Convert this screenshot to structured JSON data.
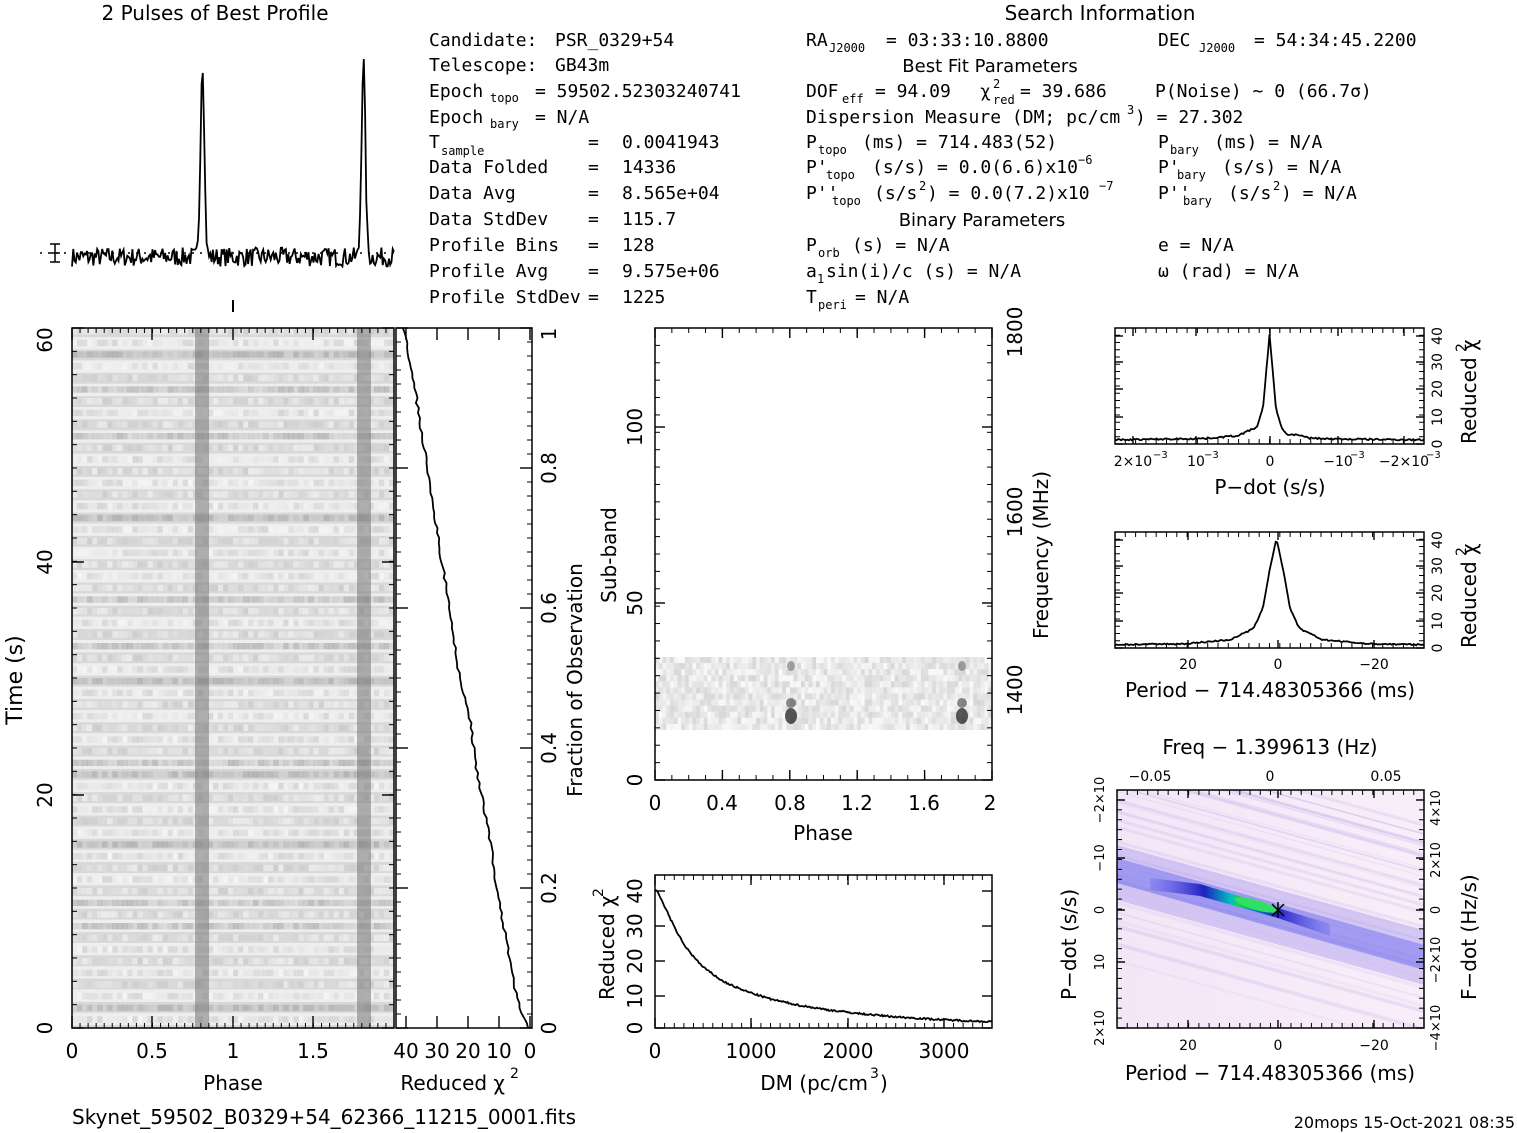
{
  "header": {
    "profile_title": "2 Pulses of Best Profile",
    "search_title": "Search Information",
    "best_fit_title": "Best Fit Parameters",
    "binary_title": "Binary Parameters",
    "footer_file": "Skynet_59502_B0329+54_62366_11215_0001.fits",
    "footer_stamp": "20mops  15-Oct-2021 08:35"
  },
  "info_left": {
    "candidate_label": "Candidate:",
    "candidate": "PSR_0329+54",
    "telescope_label": "Telescope:",
    "telescope": "GB43m",
    "epoch_topo_label": "Epoch",
    "epoch_topo_sub": "topo",
    "epoch_topo": "= 59502.52303240741",
    "epoch_bary_label": "Epoch",
    "epoch_bary_sub": "bary",
    "epoch_bary": "= N/A",
    "tsample_label": "T",
    "tsample_sub": "sample",
    "tsample": "0.0041943",
    "data_folded_label": "Data Folded",
    "data_folded": "14336",
    "data_avg_label": "Data Avg",
    "data_avg": "8.565e+04",
    "data_std_label": "Data StdDev",
    "data_std": "115.7",
    "prof_bins_label": "Profile Bins",
    "prof_bins": "128",
    "prof_avg_label": "Profile Avg",
    "prof_avg": "9.575e+06",
    "prof_std_label": "Profile StdDev",
    "prof_std": "1225",
    "eq": "="
  },
  "info_mid": {
    "ra_label": "RA",
    "ra_sub": "J2000",
    "ra": "= 03:33:10.8800",
    "dof_label": "DOF",
    "dof_sub": "eff",
    "dof": "= 94.09",
    "chi_label": "χ",
    "chi_sup": "2",
    "chi_sub": "red",
    "chi": "= 39.686",
    "dm_line": "Dispersion Measure (DM; pc/cm",
    "dm_sup": "3",
    "dm_val": ") = 27.302",
    "ptopo_label": "P",
    "ptopo_sub": "topo",
    "ptopo": "(ms)  =   714.483(52)",
    "pdtopo_label": "P'",
    "pdtopo_sub": "topo",
    "pdtopo": "(s/s) = 0.0(6.6)x10",
    "pdtopo_exp": "−6",
    "pddtopo_label": "P''",
    "pddtopo_sub": "topo",
    "pddtopo_a": "(s/s",
    "pddtopo_sup": "2",
    "pddtopo_b": ") = 0.0(7.2)x10",
    "pddtopo_exp": "−7",
    "porb_label": "P",
    "porb_sub": "orb",
    "porb": "(s) = N/A",
    "a1_label": "a",
    "a1_sub": "1",
    "a1": "sin(i)/c (s) = N/A",
    "tperi_label": "T",
    "tperi_sub": "peri",
    "tperi": "= N/A"
  },
  "info_right": {
    "dec_label": "DEC",
    "dec_sub": "J2000",
    "dec": "= 54:34:45.2200",
    "pnoise": "P(Noise) ~ 0   (66.7σ)",
    "pbary_label": "P",
    "pbary_sub": "bary",
    "pbary": "(ms) = N/A",
    "pdbary_label": "P'",
    "pdbary_sub": "bary",
    "pdbary": "(s/s) = N/A",
    "pddbary_label": "P''",
    "pddbary_sub": "bary",
    "pddbary_a": "(s/s",
    "pddbary_sup": "2",
    "pddbary_b": ") = N/A",
    "e": "e = N/A",
    "omega": "ω (rad) = N/A"
  },
  "chart_data": [
    {
      "type": "line",
      "name": "pulse-profile",
      "x_range": [
        0,
        2
      ],
      "peaks_phase": [
        0.81,
        1.81
      ],
      "baseline_relative": 0.07,
      "peak_relative": 1.0,
      "errorbar": true
    },
    {
      "type": "heatmap",
      "name": "time-phase",
      "xlabel": "Phase",
      "ylabel": "Time (s)",
      "xlim": [
        0,
        2
      ],
      "ylim": [
        0,
        60
      ],
      "xticks": [
        "0",
        "0.5",
        "1",
        "1.5"
      ],
      "yticks": [
        "0",
        "20",
        "40",
        "60"
      ],
      "pulse_phases": [
        0.81,
        1.81
      ]
    },
    {
      "type": "line",
      "name": "reduced-chi2-vs-time",
      "xlabel": "Reduced χ",
      "xlabel_sup": "2",
      "ylabel": "Fraction of Observation",
      "xticks": [
        "40",
        "30",
        "20",
        "10",
        "0"
      ],
      "yticks": [
        "0",
        "0.2",
        "0.4",
        "0.6",
        "0.8",
        "1"
      ],
      "x": [
        0,
        2,
        4,
        6,
        8,
        10,
        12,
        14,
        17,
        19,
        22,
        24,
        26,
        28,
        30,
        32,
        34,
        36,
        38,
        40
      ],
      "fraction": [
        0,
        0.02,
        0.05,
        0.1,
        0.15,
        0.2,
        0.26,
        0.31,
        0.38,
        0.45,
        0.5,
        0.56,
        0.62,
        0.67,
        0.73,
        0.79,
        0.84,
        0.9,
        0.95,
        1.0
      ]
    },
    {
      "type": "heatmap",
      "name": "subband-phase",
      "xlabel": "Phase",
      "ylabel": "Sub-band",
      "y2label": "Frequency (MHz)",
      "xlim": [
        0,
        2
      ],
      "ylim": [
        0,
        128
      ],
      "xticks": [
        "0",
        "0.4",
        "0.8",
        "1.2",
        "1.6",
        "2"
      ],
      "yticks": [
        "0",
        "50",
        "100"
      ],
      "y2ticks": [
        "1400",
        "1600",
        "1800"
      ],
      "occupied_subbands": [
        14,
        35
      ],
      "pulse_phases": [
        0.81,
        1.81
      ]
    },
    {
      "type": "line",
      "name": "chi2-vs-dm",
      "xlabel": "DM (pc/cm",
      "xlabel_sup": "3",
      "xlabel_end": ")",
      "ylabel": "Reduced χ",
      "ylabel_sup": "2",
      "xlim": [
        0,
        3500
      ],
      "ylim": [
        0,
        44
      ],
      "xticks": [
        "0",
        "1000",
        "2000",
        "3000"
      ],
      "yticks": [
        "0",
        "10",
        "20",
        "30",
        "40"
      ],
      "x": [
        0,
        30,
        100,
        200,
        300,
        400,
        500,
        700,
        900,
        1200,
        1500,
        1800,
        2100,
        2500,
        2900,
        3300,
        3500
      ],
      "y": [
        39.7,
        39,
        35,
        29,
        24,
        20.5,
        17.5,
        13.5,
        11,
        8.3,
        6.5,
        5.2,
        4.2,
        3.2,
        2.5,
        2,
        1.8
      ]
    },
    {
      "type": "line",
      "name": "chi2-vs-pdot",
      "xlabel": "P−dot (s/s)",
      "ylabel": "Reduced χ",
      "ylabel_sup": "2",
      "xticks": [
        "2×10",
        "10",
        "0",
        "−10",
        "−2×10"
      ],
      "xtick_exp": "−3",
      "yticks": [
        "0",
        "10",
        "20",
        "30",
        "40"
      ],
      "xlim": [
        0.0024,
        -0.0024
      ],
      "ylim": [
        0,
        42
      ],
      "x": [
        0.0024,
        0.001,
        0.0005,
        0.0002,
        0.0001,
        0,
        -0.0001,
        -0.0002,
        -0.0003,
        -0.0004,
        -0.0006,
        -0.001,
        -0.0024
      ],
      "y": [
        1.5,
        2,
        3,
        6,
        13,
        39.7,
        13,
        5,
        3.2,
        3.5,
        2.2,
        1.8,
        1.5
      ]
    },
    {
      "type": "line",
      "name": "chi2-vs-period",
      "xlabel": "Period − 714.48305366 (ms)",
      "ylabel": "Reduced χ",
      "ylabel_sup": "2",
      "xticks": [
        "20",
        "0",
        "−20"
      ],
      "yticks": [
        "0",
        "10",
        "20",
        "30",
        "40"
      ],
      "xlim": [
        35,
        -32
      ],
      "ylim": [
        0,
        42
      ],
      "x": [
        35,
        20,
        10,
        5,
        3,
        1.5,
        0,
        -1.5,
        -3,
        -5,
        -10,
        -20,
        -32
      ],
      "y": [
        1.2,
        1.5,
        3,
        7,
        14,
        28,
        39.7,
        28,
        14,
        7,
        3,
        1.5,
        1.2
      ]
    },
    {
      "type": "heatmap",
      "name": "period-pdot-plane",
      "title": "Freq − 1.399613 (Hz)",
      "xlabel": "Period − 714.48305366 (ms)",
      "ylabel": "P−dot (s/s)",
      "y2label": "F−dot (Hz/s)",
      "xticks": [
        "20",
        "0",
        "−20"
      ],
      "topticks": [
        "−0.05",
        "0",
        "0.05"
      ],
      "yticks_left": [
        "2×10",
        "10",
        "0",
        "−10",
        "−2×10"
      ],
      "yticks_right": [
        "−4×10",
        "−2×10",
        "0",
        "2×10",
        "4×10"
      ],
      "ytick_exp": "−3",
      "xlim": [
        35,
        -32
      ],
      "best": [
        0,
        0
      ]
    }
  ]
}
